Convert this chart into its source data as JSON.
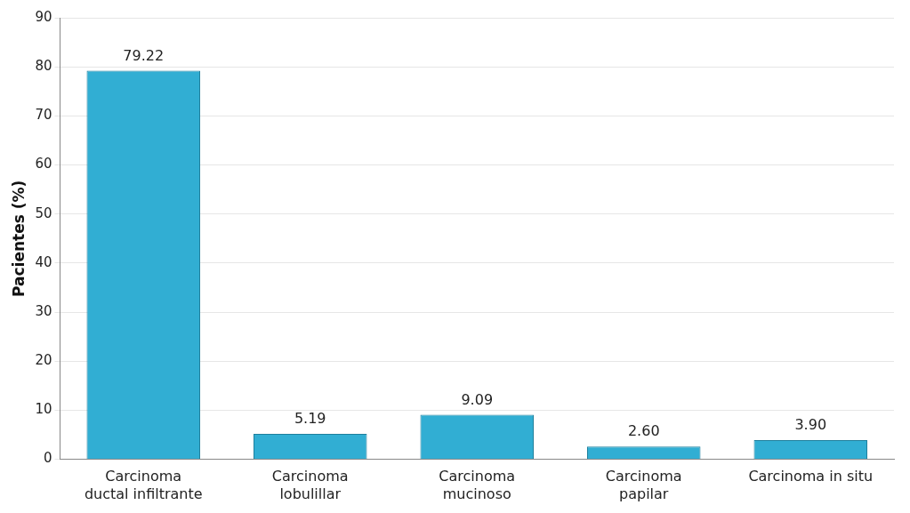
{
  "chart_data": {
    "type": "bar",
    "ylabel": "Pacientes (%)",
    "categories": [
      "Carcinoma\nductal infiltrante",
      "Carcinoma\nlobulillar",
      "Carcinoma\nmucinoso",
      "Carcinoma\npapilar",
      "Carcinoma in situ"
    ],
    "values": [
      79.22,
      5.19,
      9.09,
      2.6,
      3.9
    ],
    "value_labels": [
      "79.22",
      "5.19",
      "9.09",
      "2.60",
      "3.90"
    ],
    "color": "#31aed3",
    "ylim": [
      0,
      90
    ],
    "yticks": [
      0,
      10,
      20,
      30,
      40,
      50,
      60,
      70,
      80,
      90
    ],
    "grid": "y",
    "legend": false
  }
}
